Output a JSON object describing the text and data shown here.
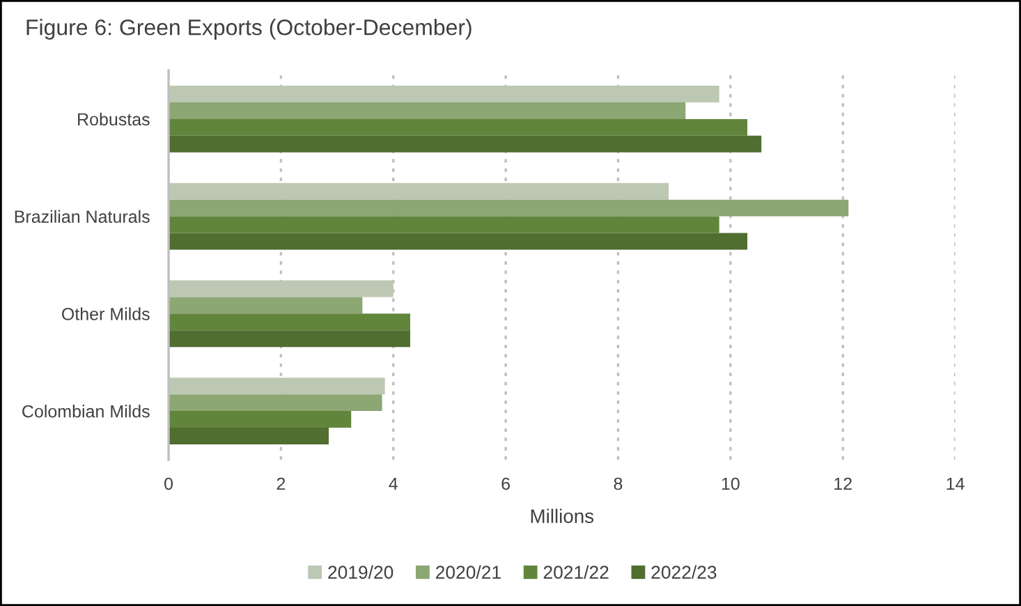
{
  "chart_data": {
    "type": "bar",
    "orientation": "horizontal",
    "title": "Figure 6: Green Exports (October-December)",
    "xlabel": "Millions",
    "categories": [
      "Robustas",
      "Brazilian Naturals",
      "Other Milds",
      "Colombian Milds"
    ],
    "series": [
      {
        "name": "2019/20",
        "color": "#bcc8b3",
        "values": [
          9.8,
          8.9,
          4.0,
          3.85
        ]
      },
      {
        "name": "2020/21",
        "color": "#8ca674",
        "values": [
          9.2,
          12.1,
          3.45,
          3.8
        ]
      },
      {
        "name": "2021/22",
        "color": "#62853c",
        "values": [
          10.3,
          9.8,
          4.3,
          3.25
        ]
      },
      {
        "name": "2022/23",
        "color": "#4f6e30",
        "values": [
          10.55,
          10.3,
          4.3,
          2.85
        ]
      }
    ],
    "xlim": [
      0,
      14
    ],
    "xticks": [
      0,
      2,
      4,
      6,
      8,
      10,
      12,
      14
    ],
    "grid": "x",
    "legend": "bottom"
  }
}
